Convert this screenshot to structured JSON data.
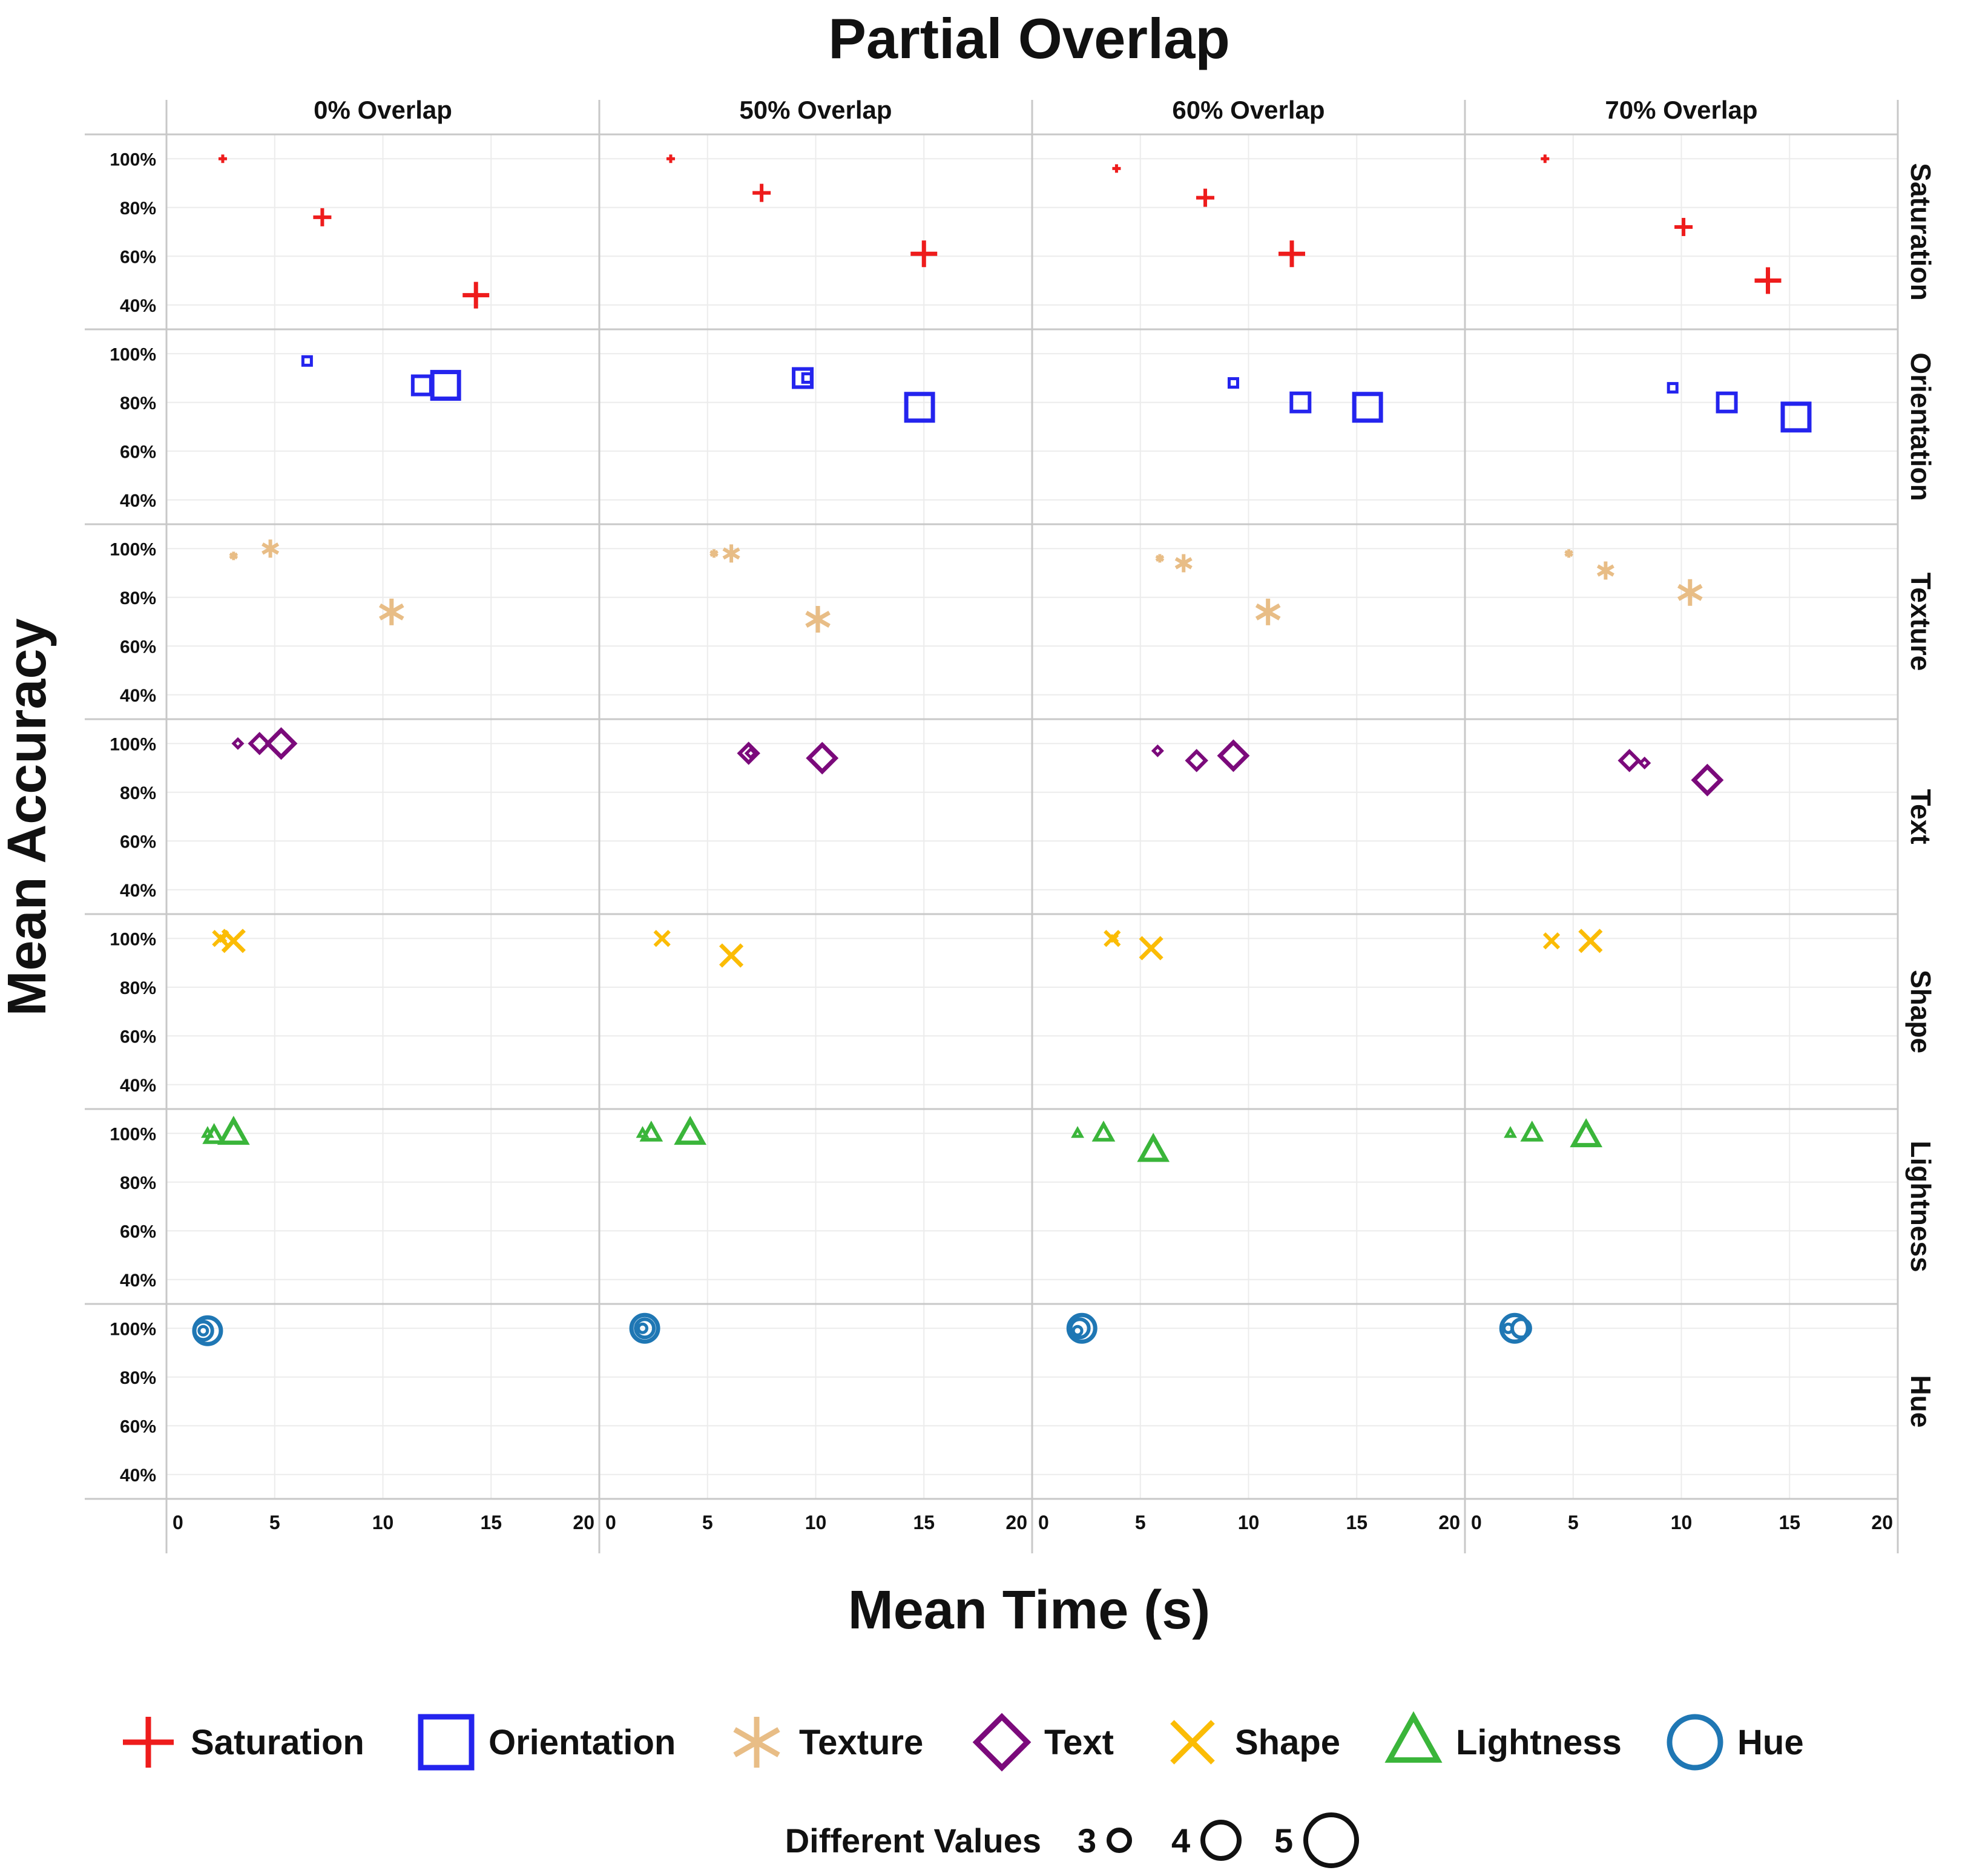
{
  "chart_data": {
    "type": "scatter",
    "title": "Partial Overlap",
    "xlabel": "Mean Time (s)",
    "ylabel": "Mean Accuracy",
    "xlim": [
      0,
      20
    ],
    "ylim": [
      30,
      110
    ],
    "x_ticks": [
      0,
      5,
      10,
      15,
      20
    ],
    "y_ticks": [
      40,
      60,
      80,
      100
    ],
    "y_tick_labels": [
      "40%",
      "60%",
      "80%",
      "100%"
    ],
    "columns": [
      "0% Overlap",
      "50% Overlap",
      "60% Overlap",
      "70% Overlap"
    ],
    "rows": [
      "Saturation",
      "Orientation",
      "Texture",
      "Text",
      "Shape",
      "Lightness",
      "Hue"
    ],
    "size_legend_title": "Different Values",
    "size_legend": [
      {
        "label": "3",
        "value": 3
      },
      {
        "label": "4",
        "value": 4
      },
      {
        "label": "5",
        "value": 5
      }
    ],
    "series": [
      {
        "name": "Saturation",
        "marker": "plus",
        "color": "#ee1c1c",
        "points": [
          {
            "col": 0,
            "n": 3,
            "x": 2.6,
            "y": 100
          },
          {
            "col": 0,
            "n": 4,
            "x": 7.2,
            "y": 76
          },
          {
            "col": 0,
            "n": 5,
            "x": 14.3,
            "y": 44
          },
          {
            "col": 1,
            "n": 3,
            "x": 3.3,
            "y": 100
          },
          {
            "col": 1,
            "n": 4,
            "x": 7.5,
            "y": 86
          },
          {
            "col": 1,
            "n": 5,
            "x": 15.0,
            "y": 61
          },
          {
            "col": 2,
            "n": 3,
            "x": 3.9,
            "y": 96
          },
          {
            "col": 2,
            "n": 4,
            "x": 8.0,
            "y": 84
          },
          {
            "col": 2,
            "n": 5,
            "x": 12.0,
            "y": 61
          },
          {
            "col": 3,
            "n": 3,
            "x": 3.7,
            "y": 100
          },
          {
            "col": 3,
            "n": 4,
            "x": 10.1,
            "y": 72
          },
          {
            "col": 3,
            "n": 5,
            "x": 14.0,
            "y": 50
          }
        ]
      },
      {
        "name": "Orientation",
        "marker": "square",
        "color": "#2424ee",
        "points": [
          {
            "col": 0,
            "n": 3,
            "x": 6.5,
            "y": 97
          },
          {
            "col": 0,
            "n": 4,
            "x": 11.8,
            "y": 87
          },
          {
            "col": 0,
            "n": 5,
            "x": 12.9,
            "y": 87
          },
          {
            "col": 1,
            "n": 3,
            "x": 9.6,
            "y": 90
          },
          {
            "col": 1,
            "n": 4,
            "x": 9.4,
            "y": 90
          },
          {
            "col": 1,
            "n": 5,
            "x": 14.8,
            "y": 78
          },
          {
            "col": 2,
            "n": 3,
            "x": 9.3,
            "y": 88
          },
          {
            "col": 2,
            "n": 4,
            "x": 12.4,
            "y": 80
          },
          {
            "col": 2,
            "n": 5,
            "x": 15.5,
            "y": 78
          },
          {
            "col": 3,
            "n": 3,
            "x": 9.6,
            "y": 86
          },
          {
            "col": 3,
            "n": 4,
            "x": 12.1,
            "y": 80
          },
          {
            "col": 3,
            "n": 5,
            "x": 15.3,
            "y": 74
          }
        ]
      },
      {
        "name": "Texture",
        "marker": "asterisk",
        "color": "#e8bd86",
        "points": [
          {
            "col": 0,
            "n": 3,
            "x": 3.1,
            "y": 97
          },
          {
            "col": 0,
            "n": 4,
            "x": 4.8,
            "y": 100
          },
          {
            "col": 0,
            "n": 5,
            "x": 10.4,
            "y": 74
          },
          {
            "col": 1,
            "n": 3,
            "x": 5.3,
            "y": 98
          },
          {
            "col": 1,
            "n": 4,
            "x": 6.1,
            "y": 98
          },
          {
            "col": 1,
            "n": 5,
            "x": 10.1,
            "y": 71
          },
          {
            "col": 2,
            "n": 3,
            "x": 5.9,
            "y": 96
          },
          {
            "col": 2,
            "n": 4,
            "x": 7.0,
            "y": 94
          },
          {
            "col": 2,
            "n": 5,
            "x": 10.9,
            "y": 74
          },
          {
            "col": 3,
            "n": 3,
            "x": 4.8,
            "y": 98
          },
          {
            "col": 3,
            "n": 4,
            "x": 6.5,
            "y": 91
          },
          {
            "col": 3,
            "n": 5,
            "x": 10.4,
            "y": 82
          }
        ]
      },
      {
        "name": "Text",
        "marker": "diamond",
        "color": "#7b0a7b",
        "points": [
          {
            "col": 0,
            "n": 3,
            "x": 3.3,
            "y": 100
          },
          {
            "col": 0,
            "n": 4,
            "x": 4.3,
            "y": 100
          },
          {
            "col": 0,
            "n": 5,
            "x": 5.3,
            "y": 100
          },
          {
            "col": 1,
            "n": 3,
            "x": 7.0,
            "y": 96
          },
          {
            "col": 1,
            "n": 4,
            "x": 6.9,
            "y": 96
          },
          {
            "col": 1,
            "n": 5,
            "x": 10.3,
            "y": 94
          },
          {
            "col": 2,
            "n": 3,
            "x": 5.8,
            "y": 97
          },
          {
            "col": 2,
            "n": 4,
            "x": 7.6,
            "y": 93
          },
          {
            "col": 2,
            "n": 5,
            "x": 9.3,
            "y": 95
          },
          {
            "col": 3,
            "n": 3,
            "x": 8.3,
            "y": 92
          },
          {
            "col": 3,
            "n": 4,
            "x": 7.6,
            "y": 93
          },
          {
            "col": 3,
            "n": 5,
            "x": 11.2,
            "y": 85
          }
        ]
      },
      {
        "name": "Shape",
        "marker": "cross",
        "color": "#fbbc05",
        "points": [
          {
            "col": 0,
            "n": 3,
            "x": 2.6,
            "y": 100
          },
          {
            "col": 0,
            "n": 4,
            "x": 2.5,
            "y": 100
          },
          {
            "col": 0,
            "n": 5,
            "x": 3.1,
            "y": 99
          },
          {
            "col": 1,
            "n": 3,
            "x": 2.9,
            "y": 100
          },
          {
            "col": 1,
            "n": 4,
            "x": 2.9,
            "y": 100
          },
          {
            "col": 1,
            "n": 5,
            "x": 6.1,
            "y": 93
          },
          {
            "col": 2,
            "n": 3,
            "x": 3.8,
            "y": 100
          },
          {
            "col": 2,
            "n": 4,
            "x": 3.7,
            "y": 100
          },
          {
            "col": 2,
            "n": 5,
            "x": 5.5,
            "y": 96
          },
          {
            "col": 3,
            "n": 3,
            "x": 4.0,
            "y": 99
          },
          {
            "col": 3,
            "n": 4,
            "x": 4.0,
            "y": 99
          },
          {
            "col": 3,
            "n": 5,
            "x": 5.8,
            "y": 99
          }
        ]
      },
      {
        "name": "Lightness",
        "marker": "triangle",
        "color": "#3ab53a",
        "points": [
          {
            "col": 0,
            "n": 3,
            "x": 1.9,
            "y": 100
          },
          {
            "col": 0,
            "n": 4,
            "x": 2.2,
            "y": 99
          },
          {
            "col": 0,
            "n": 5,
            "x": 3.1,
            "y": 100
          },
          {
            "col": 1,
            "n": 3,
            "x": 2.0,
            "y": 100
          },
          {
            "col": 1,
            "n": 4,
            "x": 2.4,
            "y": 100
          },
          {
            "col": 1,
            "n": 5,
            "x": 4.2,
            "y": 100
          },
          {
            "col": 2,
            "n": 3,
            "x": 2.1,
            "y": 100
          },
          {
            "col": 2,
            "n": 4,
            "x": 3.3,
            "y": 100
          },
          {
            "col": 2,
            "n": 5,
            "x": 5.6,
            "y": 93
          },
          {
            "col": 3,
            "n": 3,
            "x": 2.1,
            "y": 100
          },
          {
            "col": 3,
            "n": 4,
            "x": 3.1,
            "y": 100
          },
          {
            "col": 3,
            "n": 5,
            "x": 5.6,
            "y": 99
          }
        ]
      },
      {
        "name": "Hue",
        "marker": "circle",
        "color": "#1f77b4",
        "points": [
          {
            "col": 0,
            "n": 3,
            "x": 1.7,
            "y": 99
          },
          {
            "col": 0,
            "n": 4,
            "x": 1.7,
            "y": 99
          },
          {
            "col": 0,
            "n": 5,
            "x": 1.9,
            "y": 99
          },
          {
            "col": 1,
            "n": 3,
            "x": 2.0,
            "y": 100
          },
          {
            "col": 1,
            "n": 4,
            "x": 2.1,
            "y": 100
          },
          {
            "col": 1,
            "n": 5,
            "x": 2.1,
            "y": 100
          },
          {
            "col": 2,
            "n": 3,
            "x": 2.1,
            "y": 99
          },
          {
            "col": 2,
            "n": 4,
            "x": 2.2,
            "y": 100
          },
          {
            "col": 2,
            "n": 5,
            "x": 2.3,
            "y": 100
          },
          {
            "col": 3,
            "n": 3,
            "x": 2.0,
            "y": 100
          },
          {
            "col": 3,
            "n": 4,
            "x": 2.6,
            "y": 100
          },
          {
            "col": 3,
            "n": 5,
            "x": 2.3,
            "y": 100
          }
        ]
      }
    ]
  }
}
